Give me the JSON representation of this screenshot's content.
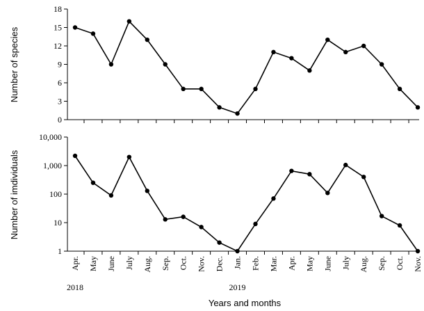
{
  "chart_data": [
    {
      "type": "line",
      "ylabel": "Number of species",
      "xlabel": "",
      "ylim": [
        0,
        18
      ],
      "yticks": [
        "0",
        "3",
        "6",
        "9",
        "12",
        "15",
        "18"
      ],
      "categories": [
        "Apr.",
        "May",
        "June",
        "July",
        "Aug.",
        "Sep.",
        "Oct.",
        "Nov.",
        "Dec.",
        "Jan.",
        "Feb.",
        "Mar.",
        "Apr.",
        "May",
        "June",
        "July",
        "Aug.",
        "Sep.",
        "Oct.",
        "Nov."
      ],
      "values": [
        15,
        14,
        9,
        16,
        13,
        9,
        5,
        5,
        2,
        1,
        5,
        11,
        10,
        8,
        13,
        11,
        12,
        9,
        5,
        2
      ]
    },
    {
      "type": "line",
      "scale": "log",
      "ylabel": "Number of imdividuals",
      "xlabel": "Years and months",
      "ylim": [
        1,
        10000
      ],
      "yticks": [
        "1",
        "10",
        "100",
        "1,000",
        "10,000"
      ],
      "categories": [
        "Apr.",
        "May",
        "June",
        "July",
        "Aug.",
        "Sep.",
        "Oct.",
        "Nov.",
        "Dec.",
        "Jan.",
        "Feb.",
        "Mar.",
        "Apr.",
        "May",
        "June",
        "July",
        "Aug.",
        "Sep.",
        "Oct.",
        "Nov."
      ],
      "values": [
        2200,
        250,
        90,
        2000,
        130,
        13,
        16,
        7,
        2,
        1,
        9,
        70,
        650,
        500,
        110,
        1050,
        400,
        17,
        8,
        1
      ],
      "year_labels": [
        {
          "label": "2018",
          "at_index": 0
        },
        {
          "label": "2019",
          "at_index": 9
        }
      ]
    }
  ]
}
